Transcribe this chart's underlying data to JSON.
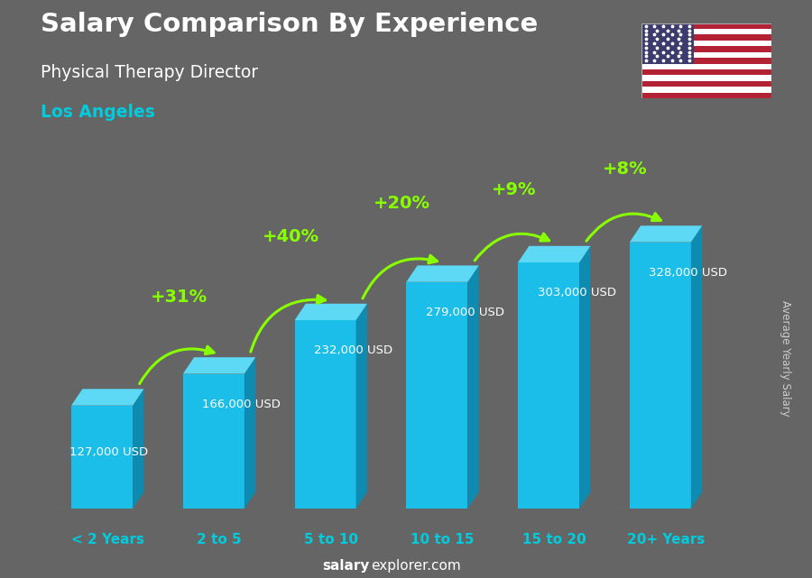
{
  "title": "Salary Comparison By Experience",
  "subtitle": "Physical Therapy Director",
  "city": "Los Angeles",
  "ylabel": "Average Yearly Salary",
  "footer_bold": "salary",
  "footer_normal": "explorer.com",
  "categories": [
    "< 2 Years",
    "2 to 5",
    "5 to 10",
    "10 to 15",
    "15 to 20",
    "20+ Years"
  ],
  "values": [
    127000,
    166000,
    232000,
    279000,
    303000,
    328000
  ],
  "value_labels": [
    "127,000 USD",
    "166,000 USD",
    "232,000 USD",
    "279,000 USD",
    "303,000 USD",
    "328,000 USD"
  ],
  "pct_changes": [
    "+31%",
    "+40%",
    "+20%",
    "+9%",
    "+8%"
  ],
  "bar_front_color": "#1BBEE8",
  "bar_side_color": "#0D8BB0",
  "bar_top_color": "#5DD8F5",
  "background_color": "#656565",
  "title_color": "#ffffff",
  "subtitle_color": "#ffffff",
  "city_color": "#00CCDD",
  "value_label_color": "#ffffff",
  "pct_color": "#88FF00",
  "arrow_color": "#88FF00",
  "footer_color": "#ffffff",
  "footer_bold_color": "#ffffff",
  "ylabel_color": "#cccccc",
  "cat_label_color": "#00CCDD",
  "figsize": [
    9.0,
    6.41
  ],
  "dpi": 100,
  "max_val": 370000
}
